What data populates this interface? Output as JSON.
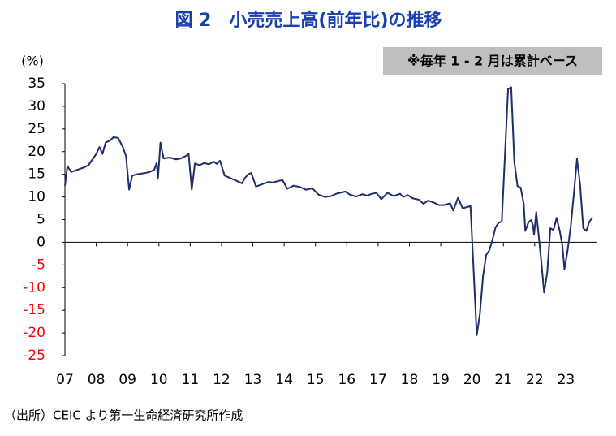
{
  "chart_data": {
    "type": "line",
    "title": "図 2　小売売上高(前年比)の推移",
    "note": "※毎年 1 - 2 月は累計ベース",
    "y_label": "(%)",
    "source": "（出所）CEIC より第一生命経済研究所作成",
    "xlim": [
      2007,
      2024
    ],
    "xticks": [
      {
        "value": 2007,
        "label": "07"
      },
      {
        "value": 2008,
        "label": "08"
      },
      {
        "value": 2009,
        "label": "09"
      },
      {
        "value": 2010,
        "label": "10"
      },
      {
        "value": 2011,
        "label": "11"
      },
      {
        "value": 2012,
        "label": "12"
      },
      {
        "value": 2013,
        "label": "13"
      },
      {
        "value": 2014,
        "label": "14"
      },
      {
        "value": 2015,
        "label": "15"
      },
      {
        "value": 2016,
        "label": "16"
      },
      {
        "value": 2017,
        "label": "17"
      },
      {
        "value": 2018,
        "label": "18"
      },
      {
        "value": 2019,
        "label": "19"
      },
      {
        "value": 2020,
        "label": "20"
      },
      {
        "value": 2021,
        "label": "21"
      },
      {
        "value": 2022,
        "label": "22"
      },
      {
        "value": 2023,
        "label": "23"
      }
    ],
    "ylim": [
      -25,
      35
    ],
    "yticks": [
      -25,
      -20,
      -15,
      -10,
      -5,
      0,
      5,
      10,
      15,
      20,
      25,
      30,
      35
    ],
    "negative_tick_color": "#ff0000",
    "grid": false,
    "x": [
      2007.0,
      2007.08,
      2007.2,
      2007.4,
      2007.6,
      2007.75,
      2007.9,
      2008.0,
      2008.1,
      2008.2,
      2008.3,
      2008.45,
      2008.55,
      2008.7,
      2008.85,
      2008.95,
      2009.05,
      2009.15,
      2009.3,
      2009.5,
      2009.7,
      2009.85,
      2009.93,
      2009.97,
      2010.05,
      2010.15,
      2010.35,
      2010.55,
      2010.7,
      2010.85,
      2010.95,
      2011.05,
      2011.15,
      2011.3,
      2011.45,
      2011.6,
      2011.75,
      2011.85,
      2011.95,
      2012.1,
      2012.3,
      2012.5,
      2012.65,
      2012.75,
      2012.85,
      2012.95,
      2013.1,
      2013.3,
      2013.5,
      2013.65,
      2013.8,
      2013.95,
      2014.1,
      2014.3,
      2014.5,
      2014.7,
      2014.9,
      2015.1,
      2015.3,
      2015.5,
      2015.7,
      2015.85,
      2015.95,
      2016.1,
      2016.3,
      2016.5,
      2016.65,
      2016.8,
      2016.95,
      2017.1,
      2017.3,
      2017.5,
      2017.7,
      2017.8,
      2017.95,
      2018.1,
      2018.3,
      2018.45,
      2018.6,
      2018.8,
      2018.95,
      2019.1,
      2019.3,
      2019.4,
      2019.55,
      2019.7,
      2019.85,
      2019.95,
      2020.15,
      2020.25,
      2020.35,
      2020.45,
      2020.55,
      2020.65,
      2020.75,
      2020.85,
      2020.95,
      2021.15,
      2021.25,
      2021.35,
      2021.45,
      2021.55,
      2021.65,
      2021.7,
      2021.8,
      2021.88,
      2021.94,
      2021.98,
      2022.05,
      2022.2,
      2022.3,
      2022.4,
      2022.5,
      2022.6,
      2022.7,
      2022.8,
      2022.88,
      2022.95,
      2023.05,
      2023.15,
      2023.25,
      2023.35,
      2023.45,
      2023.55,
      2023.65,
      2023.75,
      2023.85
    ],
    "series": [
      {
        "color": "#1f2d6b",
        "values": [
          12.5,
          16.8,
          15.5,
          16,
          16.5,
          17,
          18.5,
          19.5,
          21,
          19.5,
          22,
          22.5,
          23.2,
          23,
          21,
          19,
          11.6,
          14.7,
          15,
          15.2,
          15.5,
          16,
          17.5,
          14,
          22,
          18.5,
          18.7,
          18.3,
          18.5,
          19,
          19.5,
          11.6,
          17.4,
          17,
          17.5,
          17.2,
          17.8,
          17.3,
          18,
          14.7,
          14.1,
          13.5,
          13,
          14.2,
          15,
          15.3,
          12.3,
          12.8,
          13.3,
          13.2,
          13.5,
          13.7,
          11.8,
          12.5,
          12.2,
          11.6,
          11.9,
          10.5,
          10,
          10.2,
          10.8,
          11,
          11.2,
          10.5,
          10.1,
          10.6,
          10.3,
          10.7,
          10.9,
          9.5,
          10.9,
          10.2,
          10.7,
          10,
          10.4,
          9.7,
          9.4,
          8.5,
          9.2,
          8.7,
          8.2,
          8.2,
          8.6,
          7,
          9.8,
          7.5,
          7.8,
          8,
          -20.5,
          -15.8,
          -7.5,
          -2.8,
          -1.8,
          0.5,
          3.3,
          4.3,
          4.6,
          33.8,
          34.2,
          17.7,
          12.4,
          12.1,
          8.5,
          2.5,
          4.4,
          4.9,
          3.9,
          1.7,
          6.7,
          -3.5,
          -11.1,
          -6.7,
          3.1,
          2.7,
          5.4,
          2.5,
          -0.5,
          -5.9,
          -1.8,
          3.5,
          10.6,
          18.4,
          12.7,
          3.1,
          2.5,
          4.6,
          5.5
        ]
      }
    ]
  }
}
